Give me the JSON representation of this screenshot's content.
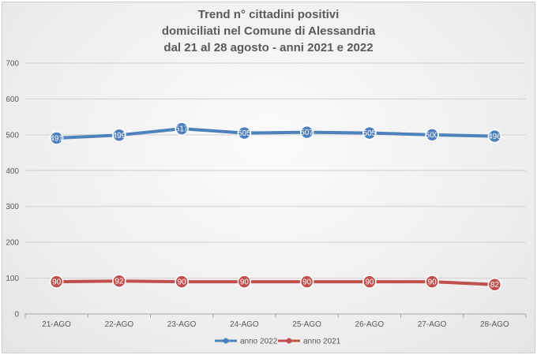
{
  "chart_data": {
    "type": "line",
    "title": [
      "Trend n° cittadini positivi",
      "domiciliati nel Comune di Alessandria",
      "dal 21 al 28 agosto - anni 2021 e 2022"
    ],
    "categories": [
      "21-AGO",
      "22-AGO",
      "23-AGO",
      "24-AGO",
      "25-AGO",
      "26-AGO",
      "27-AGO",
      "28-AGO"
    ],
    "ylim": [
      0,
      700
    ],
    "yticks": [
      0,
      100,
      200,
      300,
      400,
      500,
      600,
      700
    ],
    "grid": true,
    "legend_position": "bottom",
    "series": [
      {
        "name": "anno 2022",
        "color": "#4f81bd",
        "values": [
          491,
          499,
          517,
          505,
          507,
          505,
          500,
          496
        ],
        "labels": [
          "491",
          "499",
          "517",
          "505",
          "507",
          "505",
          "500",
          "496"
        ]
      },
      {
        "name": "anno 2021",
        "color": "#c0504d",
        "values": [
          90,
          92,
          90,
          90,
          90,
          90,
          90,
          82
        ],
        "labels": [
          "90",
          "92",
          "90",
          "90",
          "90",
          "90",
          "90",
          "82"
        ]
      }
    ]
  }
}
